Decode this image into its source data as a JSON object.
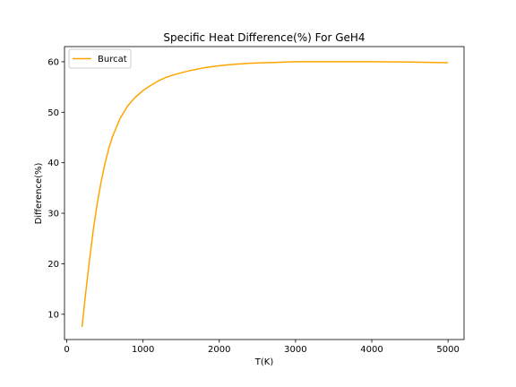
{
  "chart_data": {
    "type": "line",
    "title": "Specific Heat Difference(%) For GeH4",
    "xlabel": "T(K)",
    "ylabel": "Difference(%)",
    "xlim": [
      -30,
      5210
    ],
    "ylim": [
      5,
      63
    ],
    "xticks": [
      0,
      1000,
      2000,
      3000,
      4000,
      5000
    ],
    "xtick_labels": [
      "0",
      "1000",
      "2000",
      "3000",
      "4000",
      "5000"
    ],
    "yticks": [
      10,
      20,
      30,
      40,
      50,
      60
    ],
    "ytick_labels": [
      "10",
      "20",
      "30",
      "40",
      "50",
      "60"
    ],
    "grid": false,
    "legend_position": "top-left",
    "series": [
      {
        "name": "Burcat",
        "color": "#ffa500",
        "x": [
          200,
          250,
          300,
          350,
          400,
          450,
          500,
          550,
          600,
          700,
          800,
          900,
          1000,
          1100,
          1200,
          1300,
          1400,
          1500,
          1600,
          1700,
          1800,
          1900,
          2000,
          2200,
          2400,
          2600,
          2800,
          3000,
          3500,
          4000,
          4500,
          5000
        ],
        "values": [
          7.5,
          14.5,
          21.0,
          27.0,
          32.0,
          36.2,
          39.8,
          42.8,
          45.2,
          48.8,
          51.3,
          53.0,
          54.3,
          55.3,
          56.2,
          56.9,
          57.4,
          57.8,
          58.2,
          58.5,
          58.8,
          59.0,
          59.2,
          59.5,
          59.7,
          59.8,
          59.9,
          60.0,
          60.0,
          60.0,
          59.95,
          59.8
        ]
      }
    ]
  }
}
